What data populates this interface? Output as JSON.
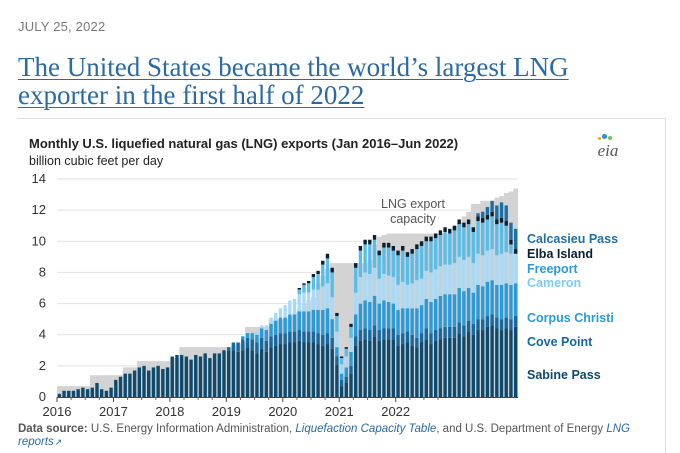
{
  "date": "JULY 25, 2022",
  "headline": "The United States became the world’s largest LNG exporter in the first half of 2022",
  "chart_title": "Monthly U.S. liquefied natural gas (LNG) exports (Jan 2016–Jun 2022)",
  "chart_unit": "billion cubic feet per day",
  "logo_text": "eia",
  "colors": {
    "capacity": "#d3d3d3",
    "sabine_pass": "#0e4a6e",
    "cove_point": "#1668a0",
    "corpus_christi": "#2a9bd8",
    "cameron": "#a9daf5",
    "freeport": "#5cbce8",
    "elba_island": "#0a2030",
    "calcasieu_pass": "#1d6fa5"
  },
  "chart_data": {
    "type": "area",
    "title": "Monthly U.S. liquefied natural gas (LNG) exports (Jan 2016–Jun 2022)",
    "ylabel": "billion cubic feet per day",
    "xlabel": "",
    "ylim": [
      0,
      14
    ],
    "yticks": [
      "0",
      "2",
      "4",
      "6",
      "8",
      "10",
      "12",
      "14"
    ],
    "xticks": [
      "2016",
      "2017",
      "2018",
      "2019",
      "2020",
      "2021",
      "2022"
    ],
    "grid": true,
    "start_month": "2016-01",
    "capacity_label": "LNG export capacity",
    "capacity": [
      0.7,
      0.7,
      0.7,
      0.7,
      0.7,
      0.7,
      0.7,
      1.4,
      1.4,
      1.4,
      1.4,
      1.4,
      1.4,
      1.4,
      1.9,
      1.9,
      1.9,
      2.3,
      2.3,
      2.3,
      2.3,
      2.3,
      2.3,
      2.3,
      2.5,
      2.5,
      3.2,
      3.2,
      3.2,
      3.2,
      3.2,
      3.2,
      3.2,
      3.2,
      3.2,
      3.2,
      3.2,
      3.3,
      3.4,
      3.5,
      4.5,
      4.5,
      4.5,
      4.5,
      4.5,
      4.9,
      5.0,
      5.0,
      5.0,
      5.2,
      5.4,
      5.6,
      6.0,
      6.2,
      6.4,
      7.3,
      7.8,
      8.2,
      8.6,
      8.6,
      8.6,
      8.6,
      8.6,
      8.6,
      8.6,
      8.6,
      8.8,
      9.8,
      10.3,
      10.4,
      10.5,
      10.5,
      10.5,
      10.5,
      10.5,
      10.5,
      10.5,
      10.5,
      10.5,
      10.5,
      10.5,
      10.5,
      10.5,
      10.5,
      11.0,
      11.2,
      11.6,
      11.9,
      12.4,
      12.4,
      12.6,
      12.6,
      12.6,
      12.8,
      12.9,
      13.1,
      13.2,
      13.4
    ],
    "series": [
      {
        "name": "Sabine Pass",
        "values": [
          0.2,
          0.4,
          0.4,
          0.4,
          0.5,
          0.6,
          0.5,
          0.6,
          0.9,
          0.5,
          0.4,
          0.6,
          1.1,
          1.3,
          1.5,
          1.5,
          1.7,
          1.9,
          2.0,
          1.7,
          1.9,
          2.0,
          1.8,
          1.9,
          2.6,
          2.7,
          2.7,
          2.6,
          2.4,
          2.7,
          2.6,
          2.8,
          2.5,
          2.8,
          2.8,
          3.0,
          3.0,
          3.0,
          2.9,
          3.0,
          3.2,
          3.0,
          2.8,
          3.1,
          2.9,
          3.2,
          3.3,
          3.4,
          3.4,
          3.5,
          3.5,
          3.6,
          3.5,
          3.5,
          3.5,
          3.4,
          3.3,
          3.4,
          3.1,
          2.1,
          0.7,
          0.9,
          1.5,
          3.3,
          3.6,
          3.7,
          3.6,
          3.9,
          3.6,
          3.7,
          3.7,
          3.7,
          3.3,
          3.4,
          3.5,
          3.3,
          3.2,
          3.5,
          3.7,
          3.4,
          3.6,
          3.7,
          3.8,
          3.8,
          3.8,
          4.1,
          3.9,
          4.2,
          4.0,
          4.3,
          4.3,
          4.5,
          4.6,
          4.4,
          4.3,
          4.4,
          4.3,
          4.5
        ]
      },
      {
        "name": "Cove Point",
        "values": [
          0,
          0,
          0,
          0,
          0,
          0,
          0,
          0,
          0,
          0,
          0,
          0,
          0,
          0,
          0,
          0,
          0,
          0,
          0,
          0,
          0,
          0,
          0,
          0,
          0,
          0,
          0,
          0,
          0,
          0,
          0,
          0,
          0,
          0,
          0,
          0,
          0.2,
          0.5,
          0.6,
          0.7,
          0.6,
          0.7,
          0.7,
          0.7,
          0.7,
          0.7,
          0.7,
          0.7,
          0.7,
          0.7,
          0.7,
          0.7,
          0.7,
          0.7,
          0.7,
          0.7,
          0.7,
          0.7,
          0.7,
          0.5,
          0.4,
          0.4,
          0.5,
          0.6,
          0.7,
          0.7,
          0.7,
          0.7,
          0.7,
          0.7,
          0.7,
          0.7,
          0.7,
          0.7,
          0.7,
          0.7,
          0.6,
          0.6,
          0.7,
          0.7,
          0.7,
          0.7,
          0.7,
          0.7,
          0.7,
          0.7,
          0.7,
          0.7,
          0.7,
          0.7,
          0.7,
          0.7,
          0.7,
          0.7,
          0.7,
          0.7,
          0.7,
          0.7
        ]
      },
      {
        "name": "Corpus Christi",
        "values": [
          0,
          0,
          0,
          0,
          0,
          0,
          0,
          0,
          0,
          0,
          0,
          0,
          0,
          0,
          0,
          0,
          0,
          0,
          0,
          0,
          0,
          0,
          0,
          0,
          0,
          0,
          0,
          0,
          0,
          0,
          0,
          0,
          0,
          0,
          0,
          0,
          0,
          0,
          0,
          0.2,
          0.3,
          0.4,
          0.5,
          0.6,
          0.7,
          0.8,
          0.9,
          1.0,
          1.0,
          1.1,
          1.1,
          1.2,
          1.3,
          1.3,
          1.4,
          1.5,
          1.6,
          1.6,
          1.2,
          0.6,
          0.4,
          0.6,
          0.9,
          1.4,
          1.7,
          1.8,
          1.8,
          1.9,
          1.7,
          1.8,
          1.7,
          1.6,
          1.6,
          1.6,
          1.5,
          1.7,
          1.9,
          1.8,
          1.9,
          2.0,
          2.0,
          2.1,
          2.1,
          2.1,
          2.1,
          2.2,
          2.2,
          2.1,
          2.0,
          2.2,
          2.1,
          2.2,
          2.2,
          2.1,
          2.2,
          2.2,
          2.2,
          2.1
        ]
      },
      {
        "name": "Cameron",
        "values": [
          0,
          0,
          0,
          0,
          0,
          0,
          0,
          0,
          0,
          0,
          0,
          0,
          0,
          0,
          0,
          0,
          0,
          0,
          0,
          0,
          0,
          0,
          0,
          0,
          0,
          0,
          0,
          0,
          0,
          0,
          0,
          0,
          0,
          0,
          0,
          0,
          0,
          0,
          0,
          0,
          0,
          0,
          0.2,
          0.2,
          0.3,
          0.4,
          0.5,
          0.6,
          0.8,
          0.9,
          1.0,
          1.1,
          1.2,
          1.2,
          1.3,
          1.3,
          1.5,
          1.6,
          1.4,
          1.0,
          0.6,
          0.7,
          0.9,
          1.4,
          1.7,
          1.8,
          1.8,
          1.8,
          1.6,
          1.7,
          1.7,
          1.7,
          1.6,
          1.7,
          1.5,
          1.6,
          1.8,
          1.7,
          1.8,
          1.9,
          1.9,
          1.9,
          1.9,
          1.9,
          2.0,
          2.0,
          2.0,
          2.0,
          1.9,
          2.0,
          2.0,
          2.0,
          2.0,
          1.9,
          2.0,
          2.0,
          2.0,
          1.9
        ]
      },
      {
        "name": "Freeport",
        "values": [
          0,
          0,
          0,
          0,
          0,
          0,
          0,
          0,
          0,
          0,
          0,
          0,
          0,
          0,
          0,
          0,
          0,
          0,
          0,
          0,
          0,
          0,
          0,
          0,
          0,
          0,
          0,
          0,
          0,
          0,
          0,
          0,
          0,
          0,
          0,
          0,
          0,
          0,
          0,
          0,
          0,
          0,
          0,
          0,
          0,
          0,
          0,
          0,
          0,
          0,
          0,
          0.3,
          0.5,
          0.6,
          0.8,
          1.0,
          1.4,
          1.6,
          1.6,
          1.0,
          0.4,
          0.5,
          0.7,
          1.6,
          1.7,
          1.8,
          1.9,
          1.8,
          1.5,
          1.7,
          1.8,
          1.7,
          1.9,
          2.0,
          1.8,
          1.9,
          2.0,
          2.1,
          1.9,
          2.0,
          2.0,
          2.0,
          2.1,
          2.0,
          2.1,
          2.1,
          2.1,
          2.1,
          2.0,
          2.1,
          2.1,
          2.0,
          2.1,
          2.0,
          2.0,
          1.7,
          0.6,
          0
        ]
      },
      {
        "name": "Elba Island",
        "values": [
          0,
          0,
          0,
          0,
          0,
          0,
          0,
          0,
          0,
          0,
          0,
          0,
          0,
          0,
          0,
          0,
          0,
          0,
          0,
          0,
          0,
          0,
          0,
          0,
          0,
          0,
          0,
          0,
          0,
          0,
          0,
          0,
          0,
          0,
          0,
          0,
          0,
          0,
          0,
          0,
          0,
          0,
          0,
          0,
          0,
          0,
          0,
          0,
          0,
          0,
          0,
          0.1,
          0.1,
          0.15,
          0.2,
          0.2,
          0.25,
          0.3,
          0.3,
          0.2,
          0.1,
          0.1,
          0.2,
          0.3,
          0.3,
          0.3,
          0.3,
          0.3,
          0.3,
          0.3,
          0.3,
          0.3,
          0.3,
          0.3,
          0.3,
          0.3,
          0.3,
          0.3,
          0.3,
          0.3,
          0.3,
          0.3,
          0.3,
          0.3,
          0.3,
          0.3,
          0.3,
          0.3,
          0.3,
          0.3,
          0.3,
          0.3,
          0.3,
          0.3,
          0.3,
          0.3,
          0.3,
          0.3
        ]
      },
      {
        "name": "Calcasieu Pass",
        "values": [
          0,
          0,
          0,
          0,
          0,
          0,
          0,
          0,
          0,
          0,
          0,
          0,
          0,
          0,
          0,
          0,
          0,
          0,
          0,
          0,
          0,
          0,
          0,
          0,
          0,
          0,
          0,
          0,
          0,
          0,
          0,
          0,
          0,
          0,
          0,
          0,
          0,
          0,
          0,
          0,
          0,
          0,
          0,
          0,
          0,
          0,
          0,
          0,
          0,
          0,
          0,
          0,
          0,
          0,
          0,
          0,
          0,
          0,
          0,
          0,
          0,
          0,
          0,
          0,
          0,
          0,
          0,
          0,
          0,
          0,
          0,
          0,
          0,
          0,
          0,
          0,
          0,
          0,
          0,
          0,
          0,
          0,
          0,
          0,
          0,
          0,
          0,
          0,
          0,
          0.2,
          0.4,
          0.5,
          0.7,
          0.9,
          1.0,
          1.0,
          1.1,
          1.3
        ]
      }
    ]
  },
  "footer": {
    "label": "Data source:",
    "text1": " U.S. Energy Information Administration, ",
    "link1": "Liquefaction Capacity Table",
    "text2": ", and U.S. Department of Energy ",
    "link2": "LNG reports"
  }
}
